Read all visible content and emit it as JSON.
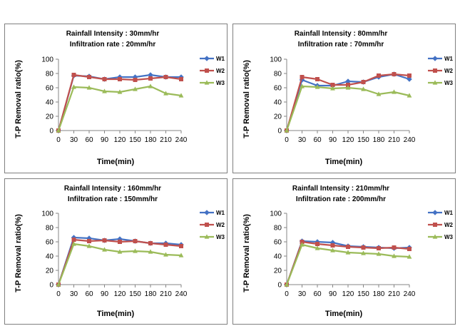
{
  "chart_data": [
    {
      "type": "line",
      "title_lines": [
        "Rainfall Intensity : 30mm/hr",
        "Infiltration rate : 20mm/hr"
      ],
      "xlabel": "Time(min)",
      "ylabel": "T-P Removal ratio(%)",
      "x": [
        0,
        30,
        60,
        90,
        120,
        150,
        180,
        210,
        240
      ],
      "ylim": [
        0,
        100
      ],
      "yticks": [
        0,
        20,
        40,
        60,
        80,
        100
      ],
      "grid": false,
      "legend_position": "right",
      "series": [
        {
          "name": "W1",
          "color": "#4472c4",
          "marker": "diamond",
          "values": [
            0,
            77,
            76,
            72,
            75,
            75,
            78,
            75,
            75
          ]
        },
        {
          "name": "W2",
          "color": "#c0504d",
          "marker": "square",
          "values": [
            0,
            78,
            75,
            72,
            72,
            71,
            73,
            75,
            72
          ]
        },
        {
          "name": "W3",
          "color": "#9bbb59",
          "marker": "triangle",
          "values": [
            0,
            61,
            60,
            55,
            54,
            58,
            62,
            52,
            49
          ]
        }
      ]
    },
    {
      "type": "line",
      "title_lines": [
        "Rainfall Intensity : 80mm/hr",
        "Infiltration rate : 70mm/hr"
      ],
      "xlabel": "Time(min)",
      "ylabel": "T-P Removal ratio(%)",
      "x": [
        0,
        30,
        60,
        90,
        120,
        150,
        180,
        210,
        240
      ],
      "ylim": [
        0,
        100
      ],
      "yticks": [
        0,
        20,
        40,
        60,
        80,
        100
      ],
      "grid": false,
      "legend_position": "right",
      "series": [
        {
          "name": "W1",
          "color": "#4472c4",
          "marker": "diamond",
          "values": [
            0,
            71,
            63,
            63,
            69,
            68,
            75,
            79,
            72
          ]
        },
        {
          "name": "W2",
          "color": "#c0504d",
          "marker": "square",
          "values": [
            0,
            75,
            72,
            64,
            64,
            68,
            77,
            79,
            77
          ]
        },
        {
          "name": "W3",
          "color": "#9bbb59",
          "marker": "triangle",
          "values": [
            0,
            62,
            61,
            59,
            60,
            58,
            51,
            54,
            49
          ]
        }
      ]
    },
    {
      "type": "line",
      "title_lines": [
        "Rainfall Intensity : 160mm/hr",
        "Infiltration rate : 150mm/hr"
      ],
      "xlabel": "Time(min)",
      "ylabel": "T-P Removal ratio(%)",
      "x": [
        0,
        30,
        60,
        90,
        120,
        150,
        180,
        210,
        240
      ],
      "ylim": [
        0,
        100
      ],
      "yticks": [
        0,
        20,
        40,
        60,
        80,
        100
      ],
      "grid": false,
      "legend_position": "right",
      "series": [
        {
          "name": "W1",
          "color": "#4472c4",
          "marker": "diamond",
          "values": [
            0,
            66,
            65,
            62,
            64,
            61,
            58,
            58,
            56
          ]
        },
        {
          "name": "W2",
          "color": "#c0504d",
          "marker": "square",
          "values": [
            0,
            63,
            61,
            62,
            60,
            61,
            58,
            56,
            54
          ]
        },
        {
          "name": "W3",
          "color": "#9bbb59",
          "marker": "triangle",
          "values": [
            0,
            57,
            54,
            49,
            46,
            47,
            46,
            42,
            41
          ]
        }
      ]
    },
    {
      "type": "line",
      "title_lines": [
        "Rainfall Intensity : 210mm/hr",
        "Infiltration rate : 200mm/hr"
      ],
      "xlabel": "Time(min)",
      "ylabel": "T-P Removal ratio(%)",
      "x": [
        0,
        30,
        60,
        90,
        120,
        150,
        180,
        210,
        240
      ],
      "ylim": [
        0,
        100
      ],
      "yticks": [
        0,
        20,
        40,
        60,
        80,
        100
      ],
      "grid": false,
      "legend_position": "right",
      "series": [
        {
          "name": "W1",
          "color": "#4472c4",
          "marker": "diamond",
          "values": [
            0,
            61,
            60,
            59,
            54,
            53,
            52,
            51,
            52
          ]
        },
        {
          "name": "W2",
          "color": "#c0504d",
          "marker": "square",
          "values": [
            0,
            60,
            57,
            55,
            53,
            52,
            51,
            52,
            50
          ]
        },
        {
          "name": "W3",
          "color": "#9bbb59",
          "marker": "triangle",
          "values": [
            0,
            56,
            51,
            48,
            45,
            44,
            43,
            40,
            39
          ]
        }
      ]
    }
  ]
}
